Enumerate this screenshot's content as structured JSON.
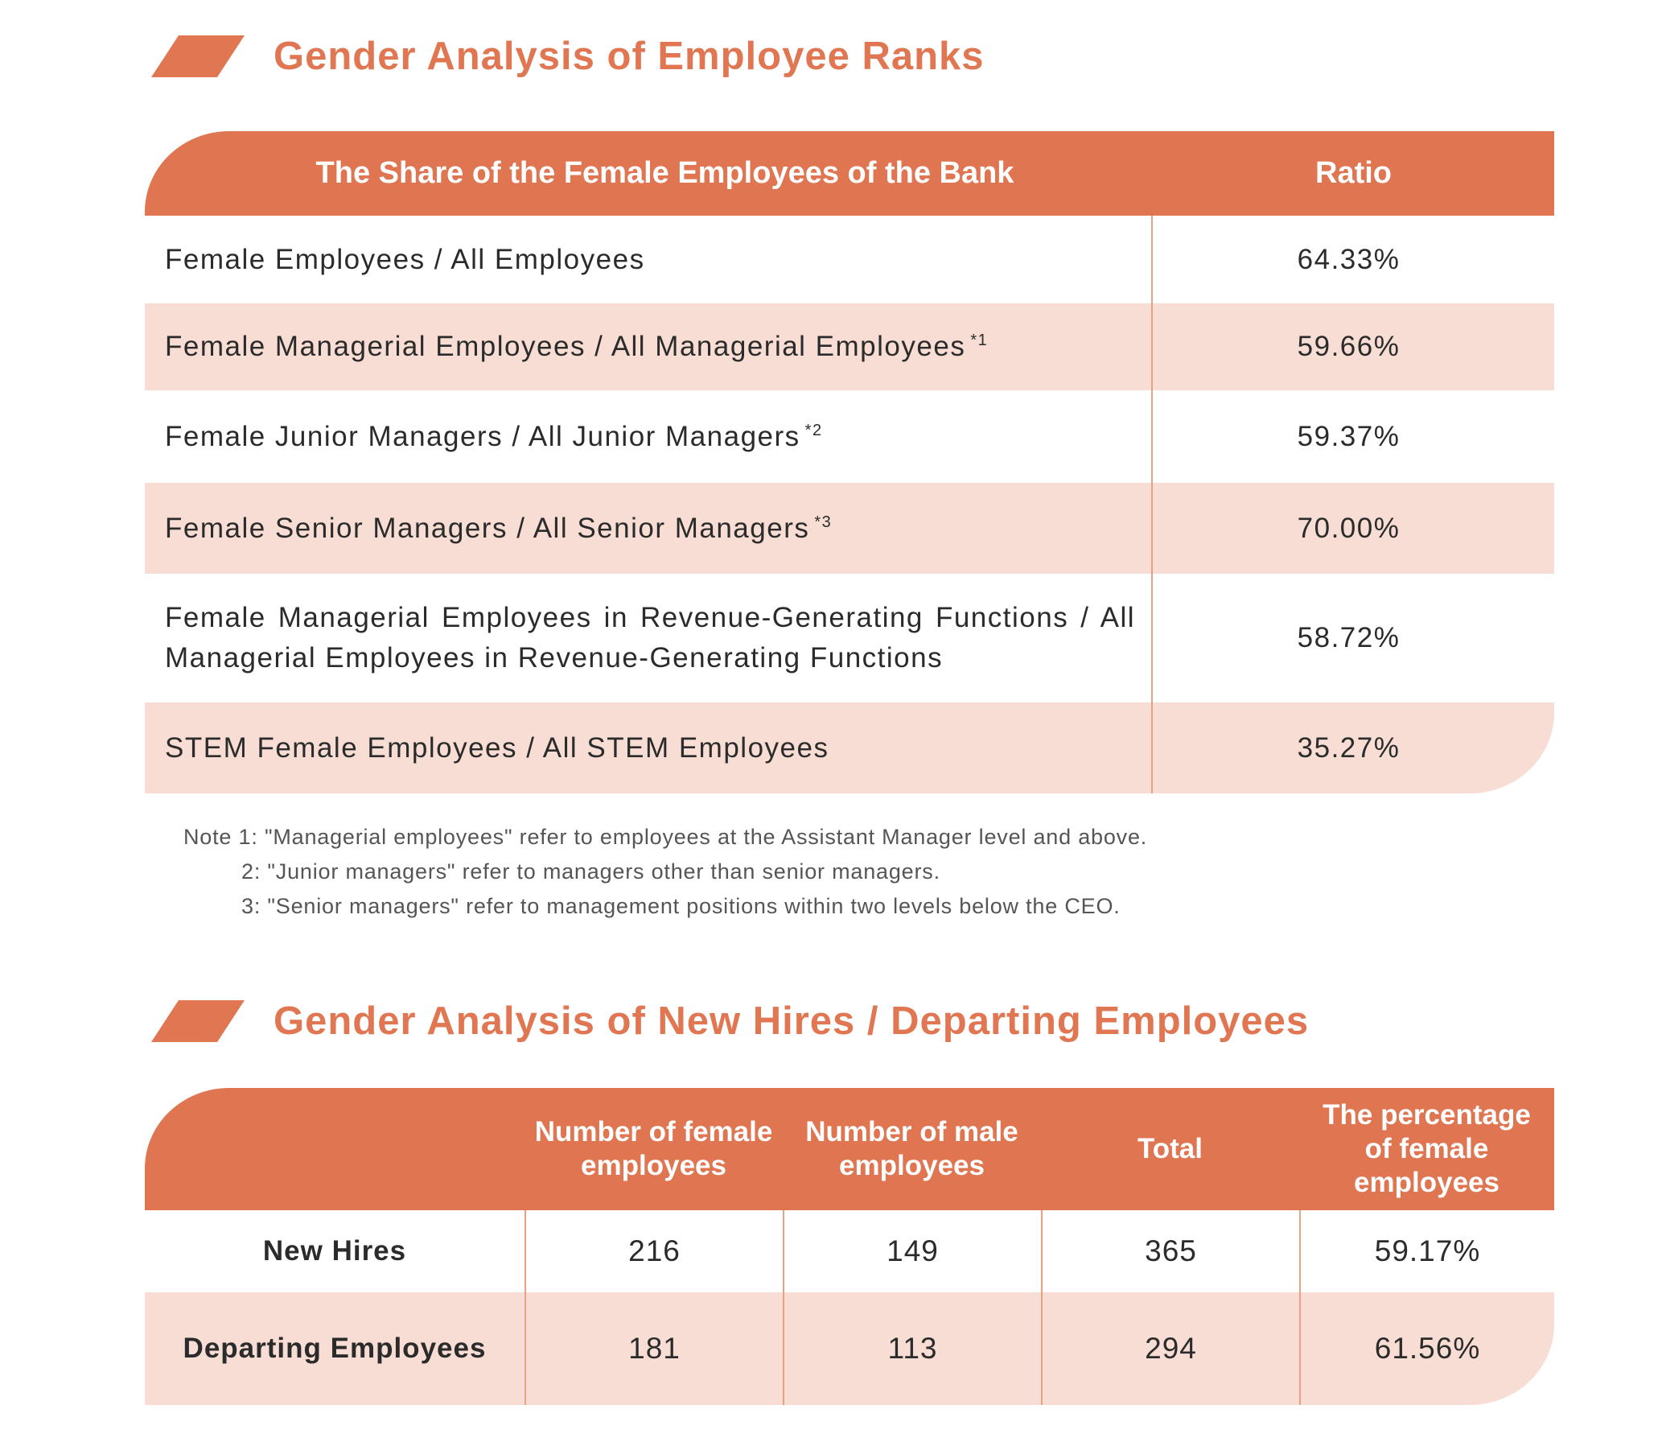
{
  "section1": {
    "title": "Gender Analysis of Employee Ranks"
  },
  "table1": {
    "header_label": "The Share of the Female Employees of the Bank",
    "header_value": "Ratio",
    "rows": [
      {
        "label": "Female Employees / All Employees",
        "note": "",
        "value": "64.33%"
      },
      {
        "label": "Female Managerial Employees / All Managerial Employees",
        "note": "*1",
        "value": "59.66%"
      },
      {
        "label": "Female Junior Managers / All Junior Managers",
        "note": "*2",
        "value": "59.37%"
      },
      {
        "label": "Female Senior Managers / All Senior Managers",
        "note": "*3",
        "value": "70.00%"
      },
      {
        "label": "Female Managerial Employees in Revenue-Generating Functions / All Managerial Employees in Revenue-Generating Functions",
        "note": "",
        "value": "58.72%"
      },
      {
        "label": "STEM Female Employees / All STEM Employees",
        "note": "",
        "value": "35.27%"
      }
    ]
  },
  "notes": [
    "Note 1: \"Managerial employees\" refer to employees at the Assistant Manager level and above.",
    "2: \"Junior managers\" refer to managers other than senior managers.",
    "3: \"Senior managers\" refer to management positions within two levels below the CEO."
  ],
  "section2": {
    "title": "Gender Analysis of New Hires / Departing Employees"
  },
  "table2": {
    "headers": [
      "",
      "Number of female employees",
      "Number of male employees",
      "Total",
      "The percentage of female employees"
    ],
    "rows": [
      {
        "label": "New Hires",
        "female": "216",
        "male": "149",
        "total": "365",
        "pct": "59.17%"
      },
      {
        "label": "Departing Employees",
        "female": "181",
        "male": "113",
        "total": "294",
        "pct": "61.56%"
      }
    ]
  },
  "colors": {
    "accent": "#df7551",
    "title": "#e07752",
    "stripe": "#f7ddd3",
    "divider": "#e9a184"
  }
}
